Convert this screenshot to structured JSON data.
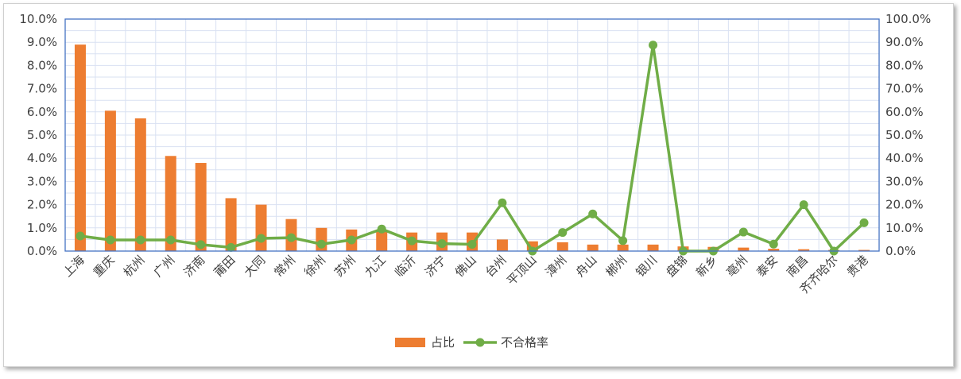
{
  "chart_data": {
    "type": "bar",
    "categories": [
      "上海",
      "重庆",
      "杭州",
      "广州",
      "济南",
      "莆田",
      "大同",
      "常州",
      "徐州",
      "苏州",
      "九江",
      "临沂",
      "济宁",
      "佛山",
      "台州",
      "平顶山",
      "漳州",
      "舟山",
      "郴州",
      "银川",
      "盘锦",
      "新乡",
      "亳州",
      "泰安",
      "南昌",
      "齐齐哈尔",
      "贵港"
    ],
    "series": [
      {
        "name": "占比",
        "axis": "left",
        "kind": "bar",
        "color": "#ED7D31",
        "values": [
          8.9,
          6.05,
          5.72,
          4.1,
          3.8,
          2.28,
          2.0,
          1.38,
          1.0,
          0.93,
          0.85,
          0.8,
          0.8,
          0.8,
          0.5,
          0.42,
          0.38,
          0.28,
          0.28,
          0.28,
          0.2,
          0.18,
          0.15,
          0.1,
          0.08,
          0.05,
          0.05
        ]
      },
      {
        "name": "不合格率",
        "axis": "right",
        "kind": "line",
        "color": "#70AD47",
        "values": [
          6.5,
          4.8,
          4.8,
          4.8,
          2.8,
          1.6,
          5.5,
          5.8,
          3.0,
          4.8,
          9.5,
          4.4,
          3.2,
          2.9,
          20.8,
          0.0,
          8.0,
          16.0,
          4.5,
          88.8,
          0.0,
          0.0,
          8.2,
          3.0,
          20.0,
          0.0,
          12.2
        ]
      }
    ],
    "y_left": {
      "min": 0,
      "max": 10,
      "step": 1,
      "tick_labels": [
        "0.0%",
        "1.0%",
        "2.0%",
        "3.0%",
        "4.0%",
        "5.0%",
        "6.0%",
        "7.0%",
        "8.0%",
        "9.0%",
        "10.0%"
      ]
    },
    "y_right": {
      "min": 0,
      "max": 100,
      "step": 10,
      "tick_labels": [
        "0.0%",
        "10.0%",
        "20.0%",
        "30.0%",
        "40.0%",
        "50.0%",
        "60.0%",
        "70.0%",
        "80.0%",
        "90.0%",
        "100.0%"
      ]
    },
    "grid": true,
    "legend_position": "bottom"
  }
}
